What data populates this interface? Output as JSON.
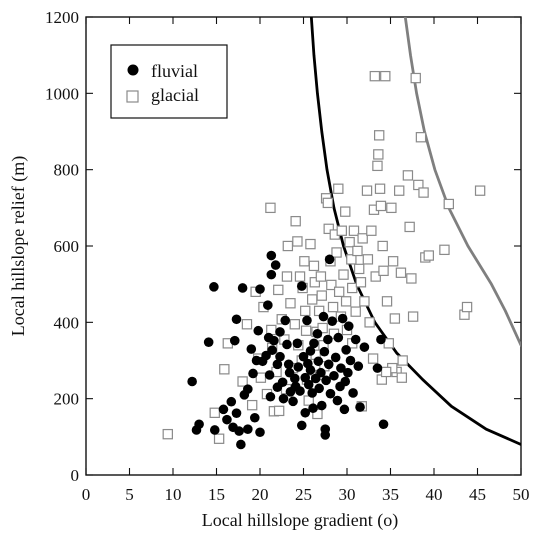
{
  "chart_data": {
    "type": "scatter",
    "title": "",
    "xlabel": "Local hillslope gradient (o)",
    "ylabel": "Local hillslope relief (m)",
    "xlim": [
      0,
      50
    ],
    "ylim": [
      0,
      1200
    ],
    "xticks": [
      "0",
      "5",
      "10",
      "15",
      "20",
      "25",
      "30",
      "35",
      "40",
      "45",
      "50"
    ],
    "yticks": [
      "0",
      "200",
      "400",
      "600",
      "800",
      "1000",
      "1200"
    ],
    "grid": false,
    "legend_position": "top-left",
    "colors": {
      "fluvial": "#000000",
      "glacial": "#8a8a8a",
      "fluvial_curve": "#000000",
      "glacial_curve": "#7f7f7f"
    },
    "series": [
      {
        "name": "fluvial",
        "marker": "filled-circle",
        "points": [
          [
            12.2,
            245
          ],
          [
            12.7,
            118
          ],
          [
            13.0,
            133
          ],
          [
            14.1,
            348
          ],
          [
            14.7,
            493
          ],
          [
            14.8,
            118
          ],
          [
            15.8,
            172
          ],
          [
            16.2,
            145
          ],
          [
            16.7,
            192
          ],
          [
            16.9,
            125
          ],
          [
            17.1,
            352
          ],
          [
            17.3,
            408
          ],
          [
            17.3,
            162
          ],
          [
            17.6,
            115
          ],
          [
            17.8,
            80
          ],
          [
            18.0,
            490
          ],
          [
            18.2,
            210
          ],
          [
            18.6,
            225
          ],
          [
            18.6,
            120
          ],
          [
            19.0,
            330
          ],
          [
            19.2,
            266
          ],
          [
            19.4,
            150
          ],
          [
            19.6,
            300
          ],
          [
            19.8,
            378
          ],
          [
            20.0,
            487
          ],
          [
            20.0,
            112
          ],
          [
            20.3,
            298
          ],
          [
            20.7,
            313
          ],
          [
            20.9,
            445
          ],
          [
            21.0,
            360
          ],
          [
            21.1,
            262
          ],
          [
            21.2,
            205
          ],
          [
            21.3,
            575
          ],
          [
            21.3,
            525
          ],
          [
            21.4,
            327
          ],
          [
            21.6,
            352
          ],
          [
            21.8,
            550
          ],
          [
            22.0,
            290
          ],
          [
            22.0,
            230
          ],
          [
            22.3,
            375
          ],
          [
            22.3,
            310
          ],
          [
            22.6,
            243
          ],
          [
            22.7,
            200
          ],
          [
            22.9,
            405
          ],
          [
            23.1,
            342
          ],
          [
            23.3,
            290
          ],
          [
            23.4,
            268
          ],
          [
            23.5,
            218
          ],
          [
            23.8,
            193
          ],
          [
            24.0,
            253
          ],
          [
            24.1,
            232
          ],
          [
            24.3,
            345
          ],
          [
            24.4,
            283
          ],
          [
            24.6,
            220
          ],
          [
            24.8,
            495
          ],
          [
            24.8,
            130
          ],
          [
            25.0,
            310
          ],
          [
            25.2,
            255
          ],
          [
            25.2,
            163
          ],
          [
            25.4,
            405
          ],
          [
            25.5,
            292
          ],
          [
            25.6,
            237
          ],
          [
            25.8,
            325
          ],
          [
            25.8,
            275
          ],
          [
            26.0,
            215
          ],
          [
            26.1,
            175
          ],
          [
            26.2,
            345
          ],
          [
            26.4,
            253
          ],
          [
            26.6,
            370
          ],
          [
            26.7,
            298
          ],
          [
            26.8,
            227
          ],
          [
            27.0,
            268
          ],
          [
            27.1,
            182
          ],
          [
            27.3,
            415
          ],
          [
            27.4,
            323
          ],
          [
            27.5,
            120
          ],
          [
            27.5,
            105
          ],
          [
            27.6,
            248
          ],
          [
            27.8,
            355
          ],
          [
            27.9,
            290
          ],
          [
            28.0,
            565
          ],
          [
            28.1,
            213
          ],
          [
            28.3,
            403
          ],
          [
            28.5,
            260
          ],
          [
            28.7,
            308
          ],
          [
            28.9,
            195
          ],
          [
            29.0,
            360
          ],
          [
            29.2,
            232
          ],
          [
            29.3,
            280
          ],
          [
            29.5,
            410
          ],
          [
            29.7,
            172
          ],
          [
            29.8,
            245
          ],
          [
            29.9,
            328
          ],
          [
            30.1,
            268
          ],
          [
            30.2,
            390
          ],
          [
            30.4,
            300
          ],
          [
            30.7,
            215
          ],
          [
            31.0,
            355
          ],
          [
            31.3,
            285
          ],
          [
            31.5,
            178
          ],
          [
            32.0,
            335
          ],
          [
            33.5,
            280
          ],
          [
            33.9,
            355
          ],
          [
            34.2,
            133
          ]
        ]
      },
      {
        "name": "glacial",
        "marker": "open-square",
        "points": [
          [
            9.4,
            107
          ],
          [
            14.8,
            163
          ],
          [
            15.3,
            95
          ],
          [
            15.9,
            277
          ],
          [
            16.3,
            345
          ],
          [
            18.0,
            245
          ],
          [
            18.5,
            395
          ],
          [
            19.1,
            183
          ],
          [
            19.5,
            480
          ],
          [
            19.8,
            305
          ],
          [
            20.1,
            255
          ],
          [
            20.4,
            440
          ],
          [
            20.8,
            212
          ],
          [
            21.2,
            700
          ],
          [
            21.3,
            380
          ],
          [
            21.4,
            333
          ],
          [
            21.6,
            167
          ],
          [
            21.9,
            270
          ],
          [
            22.1,
            485
          ],
          [
            22.2,
            168
          ],
          [
            22.5,
            408
          ],
          [
            22.8,
            355
          ],
          [
            23.0,
            225
          ],
          [
            23.1,
            520
          ],
          [
            23.2,
            600
          ],
          [
            23.5,
            450
          ],
          [
            23.8,
            280
          ],
          [
            24.0,
            395
          ],
          [
            24.1,
            665
          ],
          [
            24.3,
            612
          ],
          [
            24.4,
            340
          ],
          [
            24.6,
            520
          ],
          [
            24.8,
            300
          ],
          [
            24.9,
            490
          ],
          [
            25.1,
            560
          ],
          [
            25.2,
            430
          ],
          [
            25.3,
            378
          ],
          [
            25.4,
            250
          ],
          [
            25.6,
            195
          ],
          [
            25.8,
            605
          ],
          [
            26.0,
            460
          ],
          [
            26.2,
            548
          ],
          [
            26.3,
            505
          ],
          [
            26.4,
            315
          ],
          [
            26.5,
            375
          ],
          [
            26.6,
            160
          ],
          [
            26.8,
            430
          ],
          [
            26.9,
            262
          ],
          [
            27.0,
            520
          ],
          [
            27.1,
            470
          ],
          [
            27.2,
            385
          ],
          [
            27.3,
            340
          ],
          [
            27.4,
            285
          ],
          [
            27.6,
            725
          ],
          [
            27.8,
            713
          ],
          [
            27.9,
            645
          ],
          [
            28.1,
            560
          ],
          [
            28.2,
            498
          ],
          [
            28.4,
            440
          ],
          [
            28.5,
            370
          ],
          [
            28.6,
            630
          ],
          [
            28.8,
            583
          ],
          [
            29.0,
            750
          ],
          [
            29.1,
            480
          ],
          [
            29.3,
            415
          ],
          [
            29.4,
            640
          ],
          [
            29.6,
            525
          ],
          [
            29.8,
            690
          ],
          [
            29.9,
            455
          ],
          [
            30.0,
            380
          ],
          [
            30.3,
            610
          ],
          [
            30.5,
            565
          ],
          [
            30.6,
            490
          ],
          [
            30.8,
            640
          ],
          [
            31.0,
            428
          ],
          [
            31.2,
            587
          ],
          [
            31.4,
            540
          ],
          [
            31.6,
            505
          ],
          [
            31.8,
            620
          ],
          [
            32.0,
            455
          ],
          [
            32.3,
            745
          ],
          [
            32.4,
            565
          ],
          [
            32.6,
            400
          ],
          [
            32.8,
            640
          ],
          [
            33.1,
            695
          ],
          [
            33.3,
            520
          ],
          [
            33.5,
            810
          ],
          [
            33.6,
            840
          ],
          [
            33.7,
            890
          ],
          [
            33.8,
            750
          ],
          [
            33.9,
            705
          ],
          [
            34.1,
            600
          ],
          [
            34.2,
            535
          ],
          [
            34.4,
            1045
          ],
          [
            34.6,
            455
          ],
          [
            34.8,
            345
          ],
          [
            35.1,
            700
          ],
          [
            35.3,
            560
          ],
          [
            35.5,
            410
          ],
          [
            35.7,
            270
          ],
          [
            36.0,
            745
          ],
          [
            36.2,
            530
          ],
          [
            36.4,
            300
          ],
          [
            37.0,
            785
          ],
          [
            37.2,
            650
          ],
          [
            37.4,
            515
          ],
          [
            37.6,
            415
          ],
          [
            37.9,
            1040
          ],
          [
            38.2,
            760
          ],
          [
            38.5,
            885
          ],
          [
            38.8,
            740
          ],
          [
            39.0,
            570
          ],
          [
            39.4,
            575
          ],
          [
            41.2,
            590
          ],
          [
            41.7,
            710
          ],
          [
            43.5,
            420
          ],
          [
            43.8,
            440
          ],
          [
            45.3,
            745
          ],
          [
            33.2,
            1045
          ],
          [
            34.0,
            250
          ],
          [
            35.2,
            280
          ],
          [
            34.5,
            270
          ],
          [
            36.3,
            255
          ],
          [
            33.0,
            305
          ],
          [
            31.7,
            180
          ],
          [
            30.6,
            345
          ]
        ]
      }
    ],
    "curves": [
      {
        "name": "fluvial threshold",
        "points": [
          [
            25.9,
            1200
          ],
          [
            26.2,
            1100
          ],
          [
            26.6,
            1000
          ],
          [
            27.1,
            900
          ],
          [
            27.7,
            800
          ],
          [
            28.5,
            700
          ],
          [
            29.6,
            600
          ],
          [
            31.1,
            500
          ],
          [
            33.2,
            400
          ],
          [
            35.7,
            320
          ],
          [
            38.7,
            250
          ],
          [
            42.0,
            180
          ],
          [
            46.0,
            120
          ],
          [
            50.0,
            80
          ]
        ]
      },
      {
        "name": "glacial threshold",
        "points": [
          [
            36.7,
            1200
          ],
          [
            37.3,
            1100
          ],
          [
            38.0,
            1000
          ],
          [
            38.9,
            900
          ],
          [
            40.1,
            800
          ],
          [
            41.7,
            700
          ],
          [
            43.9,
            600
          ],
          [
            46.6,
            500
          ],
          [
            48.2,
            430
          ],
          [
            50.0,
            340
          ]
        ]
      }
    ],
    "legend": {
      "fluvial_label": "fluvial",
      "glacial_label": "glacial"
    }
  }
}
